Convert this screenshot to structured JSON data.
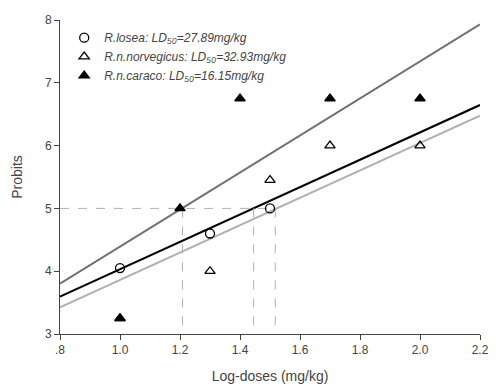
{
  "chart_data": {
    "type": "scatter",
    "xlabel": "Log-doses (mg/kg)",
    "ylabel": "Probits",
    "xlim": [
      0.8,
      2.2
    ],
    "ylim": [
      3,
      8
    ],
    "xticks": [
      {
        "value": 0.8,
        "label": ".8"
      },
      {
        "value": 1.0,
        "label": "1.0"
      },
      1.2,
      1.4,
      1.6,
      1.8,
      {
        "value": 2.0,
        "label": "2.0"
      },
      2.2
    ],
    "yticks": [
      3,
      4,
      5,
      6,
      7,
      8
    ],
    "grid": false,
    "legend": "upper left",
    "series": [
      {
        "type": "line",
        "color": "#b0b0b0",
        "line_style": "solid",
        "x": [
          0.8,
          2.2
        ],
        "values": [
          3.424,
          6.476
        ]
      },
      {
        "type": "line",
        "color": "#707070",
        "line_style": "solid",
        "x": [
          0.8,
          2.2
        ],
        "values": [
          3.8,
          7.93
        ]
      },
      {
        "type": "line",
        "color": "#000000",
        "line_style": "solid",
        "x": [
          0.8,
          2.2
        ],
        "values": [
          3.594,
          6.646
        ]
      },
      {
        "type": "line",
        "color": "#b0b0b0",
        "line_style": "dashed",
        "x": [
          0.8,
          1.5176
        ],
        "values": [
          5.0,
          5.0
        ]
      },
      {
        "type": "line",
        "color": "#b0b0b0",
        "line_style": "dashed",
        "x": [
          1.4455,
          1.4455
        ],
        "values": [
          5.0,
          3
        ]
      },
      {
        "type": "line",
        "color": "#b0b0b0",
        "line_style": "dashed",
        "x": [
          1.5176,
          1.5176
        ],
        "values": [
          5.0,
          3
        ]
      },
      {
        "type": "line",
        "color": "#b0b0b0",
        "line_style": "dashed",
        "x": [
          1.2082,
          1.2082
        ],
        "values": [
          5.0,
          3
        ]
      },
      {
        "type": "scatter",
        "name": "R.losea: LD₅₀=27.89mg/kg",
        "color": "#000000",
        "marker": "circle-open",
        "x": [
          1.0,
          1.3,
          1.5
        ],
        "values": [
          4.05,
          4.6,
          5.0
        ]
      },
      {
        "type": "scatter",
        "name": "R.n.norvegicus: LD₅₀=32.93mg/kg",
        "color": "#000000",
        "marker": "triangle-up-open",
        "x": [
          1.0,
          1.3,
          1.5,
          1.7,
          2.0
        ],
        "values": [
          3.25,
          4.0,
          5.45,
          6.0,
          6.0
        ]
      },
      {
        "type": "scatter",
        "name": "R.n.caraco: LD₅₀=16.15mg/kg",
        "color": "#000000",
        "marker": "triangle-up",
        "x": [
          1.0,
          1.2,
          1.4,
          1.7,
          2.0
        ],
        "values": [
          3.25,
          5.0,
          6.75,
          6.75,
          6.75
        ]
      }
    ]
  }
}
